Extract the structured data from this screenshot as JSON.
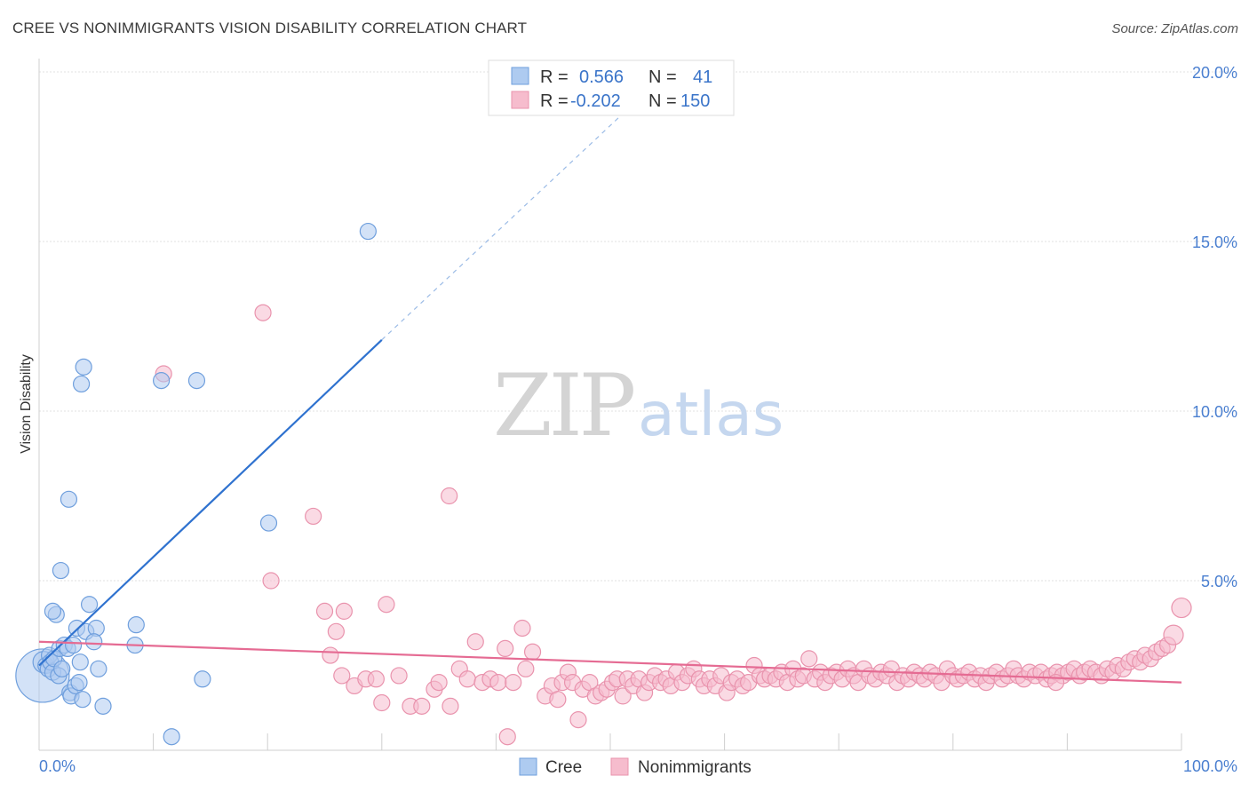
{
  "title": "CREE VS NONIMMIGRANTS VISION DISABILITY CORRELATION CHART",
  "source": "Source: ZipAtlas.com",
  "watermark": {
    "part1": "ZIP",
    "part2": "atlas"
  },
  "legend_stats": [
    {
      "r_label": "R =",
      "r_value": "0.566",
      "n_label": "N =",
      "n_value": "41",
      "color": "#a9c8f2",
      "border": "#6a9be0"
    },
    {
      "r_label": "R =",
      "r_value": "-0.202",
      "n_label": "N =",
      "n_value": "150",
      "color": "#f7b8cc",
      "border": "#e88aa8"
    }
  ],
  "chart_data": {
    "type": "scatter",
    "ylabel": "Vision Disability",
    "x_tick_labels": [
      "0.0%",
      "100.0%"
    ],
    "y_tick_labels": [
      "5.0%",
      "10.0%",
      "15.0%",
      "20.0%"
    ],
    "y_ticks": [
      5,
      10,
      15,
      20
    ],
    "xlim": [
      0,
      100
    ],
    "ylim": [
      0,
      20
    ],
    "grid": true,
    "legend_placement": "bottom-center",
    "colors": {
      "cree_fill": "#aecbf0",
      "cree_stroke": "#6f9fdd",
      "cree_line": "#2f72cf",
      "nonimm_fill": "#f6bccd",
      "nonimm_stroke": "#e993ad",
      "nonimm_line": "#e56b93"
    },
    "series": [
      {
        "name": "Cree",
        "trendline": {
          "x0": 0,
          "y0": 2.5,
          "x1": 30,
          "y1": 12.1,
          "dash_to_x": 55,
          "dash_to_y": 20.0
        },
        "points": [
          [
            0.3,
            2.2,
            30
          ],
          [
            0.4,
            2.6,
            12
          ],
          [
            0.6,
            2.5,
            9
          ],
          [
            0.8,
            2.4,
            9
          ],
          [
            0.9,
            2.8,
            9
          ],
          [
            1.0,
            2.6,
            9
          ],
          [
            1.2,
            2.3,
            9
          ],
          [
            1.3,
            2.7,
            9
          ],
          [
            1.5,
            4.0,
            9
          ],
          [
            1.7,
            2.2,
            9
          ],
          [
            1.8,
            3.0,
            9
          ],
          [
            2.0,
            2.4,
            9
          ],
          [
            2.2,
            3.1,
            9
          ],
          [
            1.2,
            4.1,
            9
          ],
          [
            1.9,
            5.3,
            9
          ],
          [
            2.5,
            3.0,
            9
          ],
          [
            2.6,
            7.4,
            9
          ],
          [
            2.7,
            1.7,
            9
          ],
          [
            2.8,
            1.6,
            9
          ],
          [
            3.0,
            3.1,
            9
          ],
          [
            3.2,
            1.9,
            9
          ],
          [
            3.3,
            3.6,
            9
          ],
          [
            3.5,
            2.0,
            9
          ],
          [
            3.6,
            2.6,
            9
          ],
          [
            3.7,
            10.8,
            9
          ],
          [
            3.8,
            1.5,
            9
          ],
          [
            3.9,
            11.3,
            9
          ],
          [
            4.1,
            3.5,
            9
          ],
          [
            4.4,
            4.3,
            9
          ],
          [
            5.0,
            3.6,
            9
          ],
          [
            4.8,
            3.2,
            9
          ],
          [
            5.2,
            2.4,
            9
          ],
          [
            5.6,
            1.3,
            9
          ],
          [
            8.4,
            3.1,
            9
          ],
          [
            8.5,
            3.7,
            9
          ],
          [
            10.7,
            10.9,
            9
          ],
          [
            11.6,
            0.4,
            9
          ],
          [
            13.8,
            10.9,
            9
          ],
          [
            14.3,
            2.1,
            9
          ],
          [
            20.1,
            6.7,
            9
          ],
          [
            28.8,
            15.3,
            9
          ]
        ]
      },
      {
        "name": "Nonimmigrants",
        "trendline": {
          "x0": 0,
          "y0": 3.2,
          "x1": 100,
          "y1": 2.0
        },
        "points": [
          [
            10.9,
            11.1,
            9
          ],
          [
            19.6,
            12.9,
            9
          ],
          [
            20.3,
            5.0,
            9
          ],
          [
            24.0,
            6.9,
            9
          ],
          [
            25.0,
            4.1,
            9
          ],
          [
            26.7,
            4.1,
            9
          ],
          [
            30.4,
            4.3,
            9
          ],
          [
            35.9,
            7.5,
            9
          ],
          [
            26.0,
            3.5,
            9
          ],
          [
            25.5,
            2.8,
            9
          ],
          [
            26.5,
            2.2,
            9
          ],
          [
            27.6,
            1.9,
            9
          ],
          [
            28.6,
            2.1,
            9
          ],
          [
            29.5,
            2.1,
            9
          ],
          [
            30.0,
            1.4,
            9
          ],
          [
            31.5,
            2.2,
            9
          ],
          [
            32.5,
            1.3,
            9
          ],
          [
            33.5,
            1.3,
            9
          ],
          [
            34.6,
            1.8,
            9
          ],
          [
            35.0,
            2.0,
            9
          ],
          [
            36.0,
            1.3,
            9
          ],
          [
            36.8,
            2.4,
            9
          ],
          [
            37.5,
            2.1,
            9
          ],
          [
            38.2,
            3.2,
            9
          ],
          [
            38.8,
            2.0,
            9
          ],
          [
            39.5,
            2.1,
            9
          ],
          [
            40.2,
            2.0,
            9
          ],
          [
            40.8,
            3.0,
            9
          ],
          [
            41.5,
            2.0,
            9
          ],
          [
            42.3,
            3.6,
            9
          ],
          [
            42.6,
            2.4,
            9
          ],
          [
            43.2,
            2.9,
            9
          ],
          [
            41.0,
            0.4,
            9
          ],
          [
            44.3,
            1.6,
            9
          ],
          [
            44.9,
            1.9,
            9
          ],
          [
            45.4,
            1.5,
            9
          ],
          [
            45.8,
            2.0,
            9
          ],
          [
            46.3,
            2.3,
            9
          ],
          [
            46.7,
            2.0,
            9
          ],
          [
            47.2,
            0.9,
            9
          ],
          [
            47.6,
            1.8,
            9
          ],
          [
            48.2,
            2.0,
            9
          ],
          [
            48.7,
            1.6,
            9
          ],
          [
            49.2,
            1.7,
            9
          ],
          [
            49.7,
            1.8,
            9
          ],
          [
            50.2,
            2.0,
            9
          ],
          [
            50.6,
            2.1,
            9
          ],
          [
            51.1,
            1.6,
            9
          ],
          [
            51.5,
            2.1,
            9
          ],
          [
            52.0,
            1.9,
            9
          ],
          [
            52.5,
            2.1,
            9
          ],
          [
            53.0,
            1.7,
            9
          ],
          [
            53.4,
            2.0,
            9
          ],
          [
            53.9,
            2.2,
            9
          ],
          [
            54.4,
            2.0,
            9
          ],
          [
            54.9,
            2.1,
            9
          ],
          [
            55.3,
            1.9,
            9
          ],
          [
            55.8,
            2.3,
            9
          ],
          [
            56.3,
            2.0,
            9
          ],
          [
            56.8,
            2.2,
            9
          ],
          [
            57.3,
            2.4,
            9
          ],
          [
            57.8,
            2.1,
            9
          ],
          [
            58.2,
            1.9,
            9
          ],
          [
            58.7,
            2.1,
            9
          ],
          [
            59.2,
            1.9,
            9
          ],
          [
            59.7,
            2.2,
            9
          ],
          [
            60.2,
            1.7,
            9
          ],
          [
            60.6,
            2.0,
            9
          ],
          [
            61.1,
            2.1,
            9
          ],
          [
            61.6,
            1.9,
            9
          ],
          [
            62.1,
            2.0,
            9
          ],
          [
            62.6,
            2.5,
            9
          ],
          [
            63.1,
            2.2,
            9
          ],
          [
            63.5,
            2.1,
            9
          ],
          [
            64.0,
            2.2,
            9
          ],
          [
            64.5,
            2.1,
            9
          ],
          [
            65.0,
            2.3,
            9
          ],
          [
            65.5,
            2.0,
            9
          ],
          [
            66.0,
            2.4,
            9
          ],
          [
            66.4,
            2.1,
            9
          ],
          [
            66.9,
            2.2,
            9
          ],
          [
            67.4,
            2.7,
            9
          ],
          [
            67.9,
            2.1,
            9
          ],
          [
            68.4,
            2.3,
            9
          ],
          [
            68.8,
            2.0,
            9
          ],
          [
            69.3,
            2.2,
            9
          ],
          [
            69.8,
            2.3,
            9
          ],
          [
            70.3,
            2.1,
            9
          ],
          [
            70.8,
            2.4,
            9
          ],
          [
            71.3,
            2.2,
            9
          ],
          [
            71.7,
            2.0,
            9
          ],
          [
            72.2,
            2.4,
            9
          ],
          [
            72.7,
            2.2,
            9
          ],
          [
            73.2,
            2.1,
            9
          ],
          [
            73.7,
            2.3,
            9
          ],
          [
            74.2,
            2.2,
            9
          ],
          [
            74.6,
            2.4,
            9
          ],
          [
            75.1,
            2.0,
            9
          ],
          [
            75.6,
            2.2,
            9
          ],
          [
            76.1,
            2.1,
            9
          ],
          [
            76.6,
            2.3,
            9
          ],
          [
            77.1,
            2.2,
            9
          ],
          [
            77.5,
            2.1,
            9
          ],
          [
            78.0,
            2.3,
            9
          ],
          [
            78.5,
            2.2,
            9
          ],
          [
            79.0,
            2.0,
            9
          ],
          [
            79.5,
            2.4,
            9
          ],
          [
            80.0,
            2.2,
            9
          ],
          [
            80.4,
            2.1,
            9
          ],
          [
            80.9,
            2.2,
            9
          ],
          [
            81.4,
            2.3,
            9
          ],
          [
            81.9,
            2.1,
            9
          ],
          [
            82.4,
            2.2,
            9
          ],
          [
            82.9,
            2.0,
            9
          ],
          [
            83.3,
            2.2,
            9
          ],
          [
            83.8,
            2.3,
            9
          ],
          [
            84.3,
            2.1,
            9
          ],
          [
            84.8,
            2.2,
            9
          ],
          [
            85.3,
            2.4,
            9
          ],
          [
            85.7,
            2.2,
            9
          ],
          [
            86.2,
            2.1,
            9
          ],
          [
            86.7,
            2.3,
            9
          ],
          [
            87.2,
            2.2,
            9
          ],
          [
            87.7,
            2.3,
            9
          ],
          [
            88.2,
            2.1,
            9
          ],
          [
            88.6,
            2.2,
            9
          ],
          [
            89.1,
            2.3,
            9
          ],
          [
            89.6,
            2.2,
            9
          ],
          [
            90.1,
            2.3,
            9
          ],
          [
            90.6,
            2.4,
            9
          ],
          [
            91.1,
            2.2,
            9
          ],
          [
            91.5,
            2.3,
            9
          ],
          [
            92.0,
            2.4,
            9
          ],
          [
            92.5,
            2.3,
            9
          ],
          [
            93.0,
            2.2,
            9
          ],
          [
            93.5,
            2.4,
            9
          ],
          [
            94.0,
            2.3,
            9
          ],
          [
            94.4,
            2.5,
            9
          ],
          [
            94.9,
            2.4,
            9
          ],
          [
            95.4,
            2.6,
            9
          ],
          [
            95.9,
            2.7,
            9
          ],
          [
            96.4,
            2.6,
            9
          ],
          [
            96.8,
            2.8,
            9
          ],
          [
            97.3,
            2.7,
            9
          ],
          [
            97.8,
            2.9,
            9
          ],
          [
            98.3,
            3.0,
            9
          ],
          [
            98.8,
            3.1,
            9
          ],
          [
            99.3,
            3.4,
            11
          ],
          [
            100.0,
            4.2,
            11
          ],
          [
            89.0,
            2.0,
            9
          ]
        ]
      }
    ]
  },
  "bottom_legend": [
    {
      "label": "Cree",
      "color": "#aecbf0",
      "border": "#6f9fdd"
    },
    {
      "label": "Nonimmigrants",
      "color": "#f6bccd",
      "border": "#e993ad"
    }
  ]
}
